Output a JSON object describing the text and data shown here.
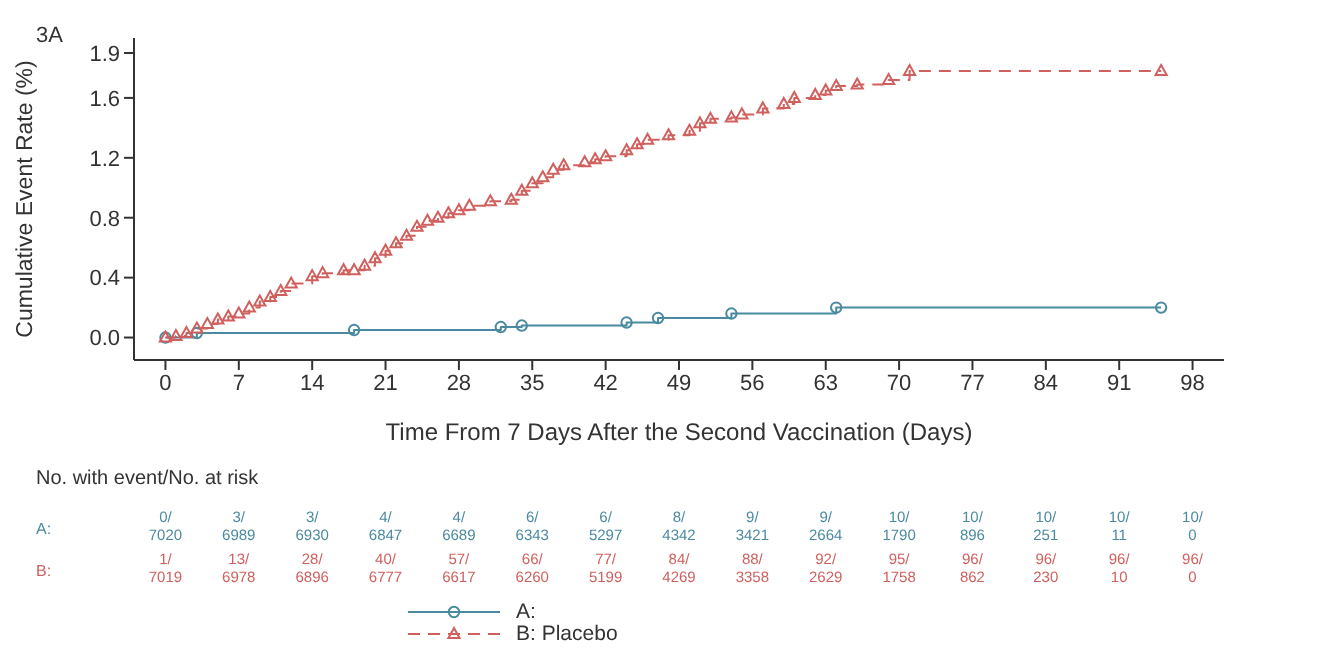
{
  "chart_data": {
    "type": "step",
    "xlabel": "Time From 7 Days After the Second Vaccination (Days)",
    "ylabel": "Cumulative Event Rate (%)",
    "xlim": [
      -3,
      101
    ],
    "xticks": [
      0,
      7,
      14,
      21,
      28,
      35,
      42,
      49,
      56,
      63,
      70,
      77,
      84,
      91,
      98
    ],
    "ylim": [
      -0.15,
      2.0
    ],
    "yticks": [
      {
        "value": 0,
        "label": "0.0"
      },
      0.4,
      0.8,
      1.2,
      1.6,
      1.9
    ],
    "legend": "bottom",
    "series": [
      {
        "name": "A:",
        "color": "#4a8aa0",
        "marker": "circle",
        "line_style": "solid",
        "x": [
          0,
          3,
          18,
          32,
          34,
          44,
          47,
          54,
          64,
          95
        ],
        "values": [
          0,
          0.03,
          0.05,
          0.07,
          0.08,
          0.1,
          0.13,
          0.16,
          0.2,
          0.2
        ]
      },
      {
        "name": "B: Placebo",
        "color": "#d0605e",
        "marker": "triangle",
        "line_style": "dashed",
        "x": [
          0,
          1,
          2,
          3,
          4,
          5,
          6,
          7,
          8,
          9,
          10,
          11,
          12,
          14,
          15,
          17,
          18,
          19,
          20,
          21,
          22,
          23,
          24,
          25,
          26,
          27,
          28,
          29,
          31,
          33,
          34,
          35,
          36,
          37,
          38,
          40,
          41,
          42,
          44,
          45,
          46,
          48,
          50,
          51,
          52,
          54,
          55,
          57,
          59,
          60,
          62,
          63,
          64,
          66,
          69,
          71,
          95
        ],
        "values": [
          0,
          0.01,
          0.03,
          0.06,
          0.09,
          0.12,
          0.14,
          0.16,
          0.2,
          0.24,
          0.27,
          0.31,
          0.36,
          0.41,
          0.43,
          0.45,
          0.45,
          0.48,
          0.53,
          0.58,
          0.63,
          0.68,
          0.74,
          0.78,
          0.8,
          0.83,
          0.85,
          0.88,
          0.91,
          0.92,
          0.98,
          1.03,
          1.07,
          1.12,
          1.15,
          1.17,
          1.19,
          1.21,
          1.25,
          1.29,
          1.32,
          1.35,
          1.38,
          1.43,
          1.46,
          1.47,
          1.49,
          1.53,
          1.56,
          1.6,
          1.62,
          1.65,
          1.68,
          1.69,
          1.72,
          1.78,
          1.78
        ]
      }
    ],
    "annotations": [
      "3A",
      "No. with event/No. at risk",
      "A:",
      "B:",
      "0/\n7020",
      "3/\n6989",
      "3/\n6930",
      "4/\n6847",
      "4/\n6689",
      "6/\n6343",
      "6/\n5297",
      "8/\n4342",
      "9/\n3421",
      "9/\n2664",
      "10/\n1790",
      "10/\n896",
      "10/\n251",
      "10/\n11",
      "10/\n0",
      "1/\n7019",
      "13/\n6978",
      "28/\n6896",
      "40/\n6777",
      "57/\n6617",
      "66/\n6260",
      "77/\n5199",
      "84/\n4269",
      "88/\n3358",
      "92/\n2629",
      "95/\n1758",
      "96/\n862",
      "96/\n230",
      "96/\n10",
      "96/\n0"
    ]
  }
}
